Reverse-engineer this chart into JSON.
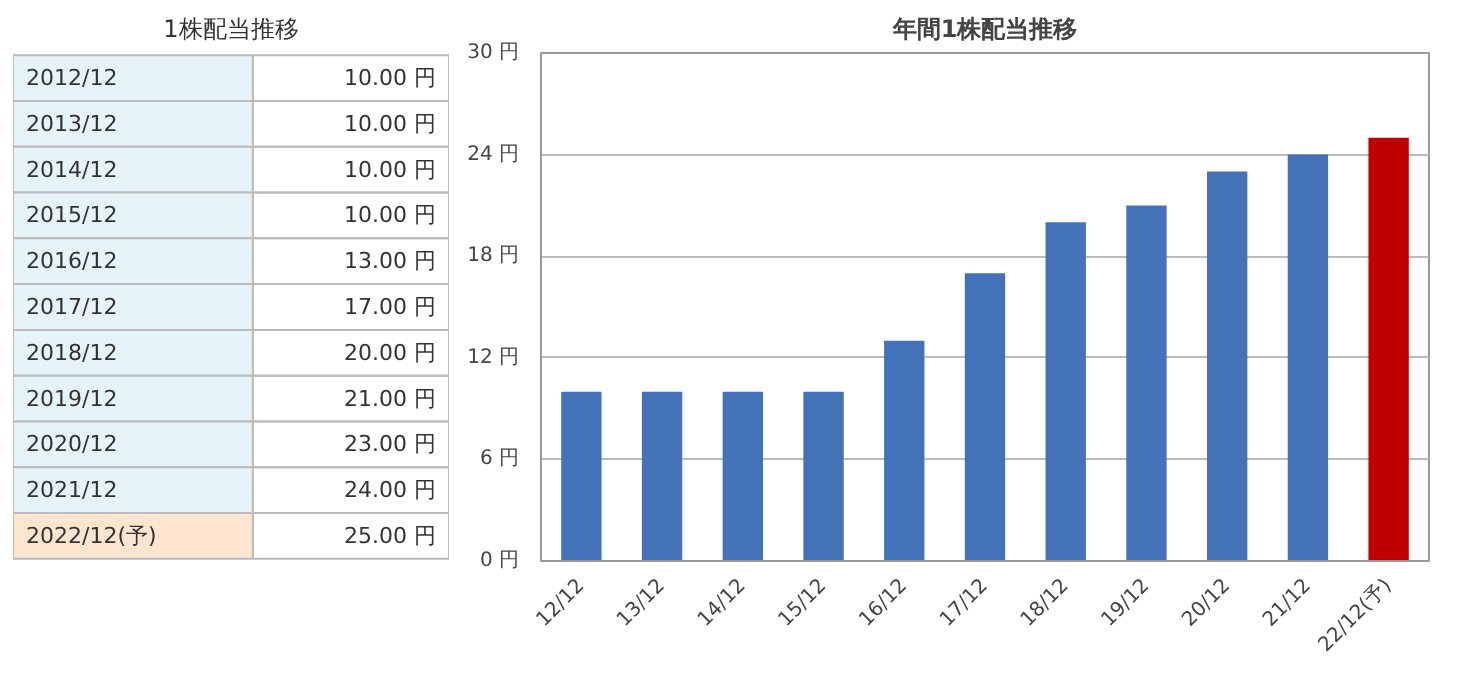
{
  "chart_data": [
    {
      "type": "other",
      "title": "1株配当推移",
      "categories": [
        "2012/12",
        "2013/12",
        "2014/12",
        "2015/12",
        "2016/12",
        "2017/12",
        "2018/12",
        "2019/12",
        "2020/12",
        "2021/12",
        "2022/12(予)"
      ],
      "values": [
        10,
        10,
        10,
        10,
        13,
        17,
        20,
        21,
        23,
        24,
        25
      ],
      "value_labels": [
        "10.00 円",
        "10.00 円",
        "10.00 円",
        "10.00 円",
        "13.00 円",
        "17.00 円",
        "20.00 円",
        "21.00 円",
        "23.00 円",
        "24.00 円",
        "25.00 円"
      ],
      "colors": [
        "#e6f3f8",
        "#e6f3f8",
        "#e6f3f8",
        "#e6f3f8",
        "#e6f3f8",
        "#e6f3f8",
        "#e6f3f8",
        "#e6f3f8",
        "#e6f3f8",
        "#e6f3f8",
        "#fde5d0"
      ]
    },
    {
      "type": "bar",
      "title": "年間1株配当推移",
      "categories": [
        "12/12",
        "13/12",
        "14/12",
        "15/12",
        "16/12",
        "17/12",
        "18/12",
        "19/12",
        "20/12",
        "21/12",
        "22/12(予)"
      ],
      "values": [
        10,
        10,
        10,
        10,
        13,
        17,
        20,
        21,
        23,
        24,
        25
      ],
      "colors": [
        "#4472b8",
        "#4472b8",
        "#4472b8",
        "#4472b8",
        "#4472b8",
        "#4472b8",
        "#4472b8",
        "#4472b8",
        "#4472b8",
        "#4472b8",
        "#c00000"
      ],
      "ylim": [
        0,
        30
      ],
      "yticks": [
        {
          "value": 0,
          "label": "0 円"
        },
        {
          "value": 6,
          "label": "6 円"
        },
        {
          "value": 12,
          "label": "12 円"
        },
        {
          "value": 18,
          "label": "18 円"
        },
        {
          "value": 24,
          "label": "24 円"
        },
        {
          "value": 30,
          "label": "30 円"
        }
      ],
      "grid": "y"
    }
  ]
}
